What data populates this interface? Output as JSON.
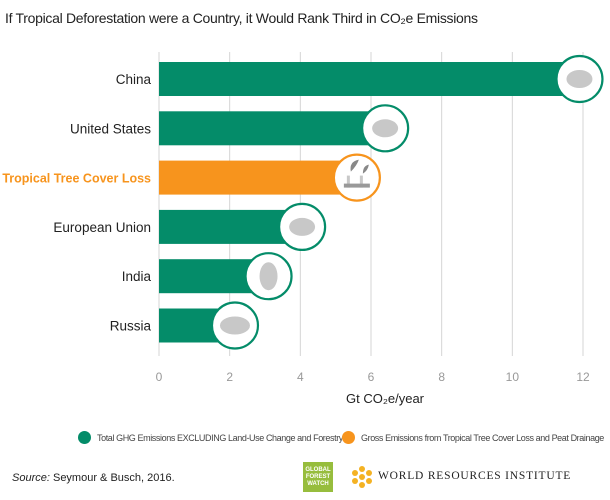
{
  "chart_data": {
    "type": "bar",
    "orientation": "horizontal",
    "title": "If Tropical Deforestation were a Country, it Would Rank Third in CO₂e Emissions",
    "xlabel": "Gt CO₂e/year",
    "categories": [
      "China",
      "United States",
      "Tropical Tree Cover Loss",
      "European Union",
      "India",
      "Russia"
    ],
    "values": [
      11.9,
      6.4,
      5.6,
      4.05,
      3.1,
      2.15
    ],
    "bar_series": [
      "total",
      "total",
      "tropical",
      "total",
      "total",
      "total"
    ],
    "icons": [
      "china-map-icon",
      "usa-map-icon",
      "deforestation-icon",
      "eu-map-icon",
      "india-map-icon",
      "russia-map-icon"
    ],
    "xlim": [
      0,
      12.5
    ],
    "xticks": [
      0,
      2,
      4,
      6,
      8,
      10,
      12
    ],
    "grid": true,
    "series": [
      {
        "key": "total",
        "name": "Total GHG Emissions EXCLUDING Land-Use Change and Forestry",
        "color": "#048c69"
      },
      {
        "key": "tropical",
        "name": "Gross Emissions from Tropical Tree Cover Loss and Peat Drainage",
        "color": "#f7941d"
      }
    ],
    "legend_position": "bottom"
  },
  "footer": {
    "source_label": "Source:",
    "source_text": " Seymour & Busch, 2016.",
    "gfw_logo": "GLOBAL FOREST WATCH",
    "wri_logo": "WORLD RESOURCES INSTITUTE"
  }
}
